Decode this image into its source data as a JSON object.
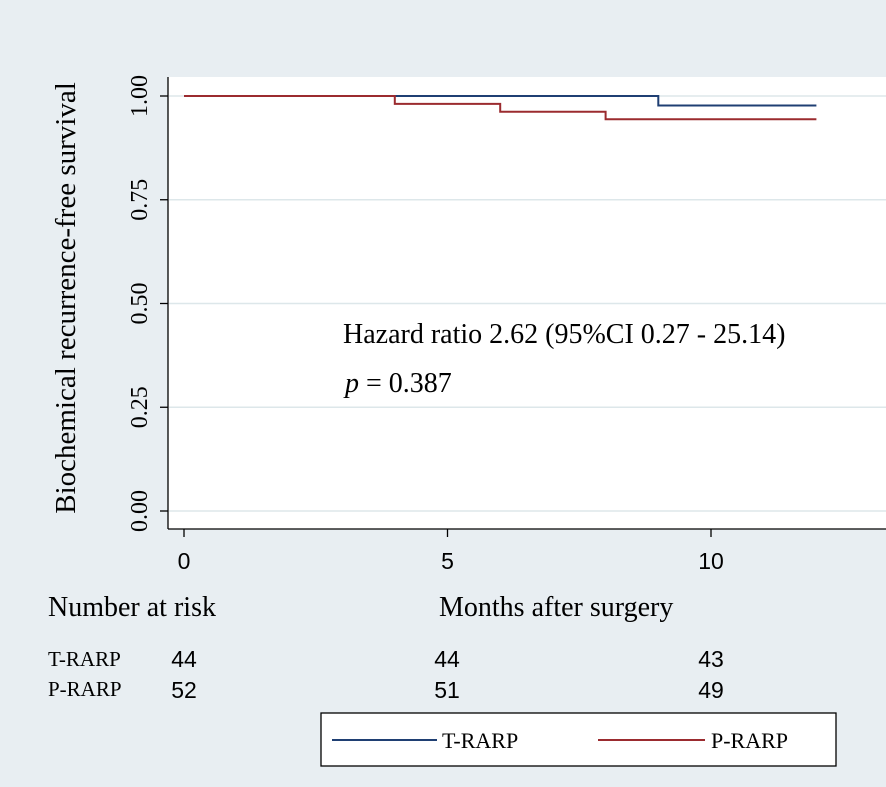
{
  "chart_data": {
    "type": "line",
    "title": "",
    "xlabel": "Months after surgery",
    "ylabel": "Biochemical recurrence-free survival",
    "xlim": [
      -0.4,
      13.5
    ],
    "ylim": [
      -0.04,
      1.04
    ],
    "x_ticks": [
      0,
      5,
      10
    ],
    "x_tick_labels": [
      "0",
      "5",
      "10"
    ],
    "y_ticks": [
      0,
      0.25,
      0.5,
      0.75,
      1
    ],
    "y_tick_labels": [
      "0.00",
      "0.25",
      "0.50",
      "0.75",
      "1.00"
    ],
    "grid": true,
    "series": [
      {
        "name": "T-RARP",
        "color": "#1f3f73",
        "steps": [
          [
            0,
            1.0
          ],
          [
            9,
            0.977
          ],
          [
            12,
            0.977
          ]
        ]
      },
      {
        "name": "P-RARP",
        "color": "#9b2b2f",
        "steps": [
          [
            0,
            1.0
          ],
          [
            4,
            0.981
          ],
          [
            6,
            0.962
          ],
          [
            8,
            0.944
          ],
          [
            12,
            0.944
          ]
        ]
      }
    ],
    "annotation": {
      "hr_text": "Hazard ratio 2.62 (95%CI 0.27 - 25.14)",
      "p_symbol": "p",
      "p_value_text": " = 0.387"
    },
    "risk_table": {
      "header": "Number at risk",
      "times": [
        0,
        5,
        10
      ],
      "rows": [
        {
          "label": "T-RARP",
          "counts": [
            "44",
            "44",
            "43"
          ]
        },
        {
          "label": "P-RARP",
          "counts": [
            "52",
            "51",
            "49"
          ]
        }
      ]
    },
    "legend": {
      "position": "bottom",
      "items": [
        {
          "label": "T-RARP",
          "color": "#1f3f73"
        },
        {
          "label": "P-RARP",
          "color": "#9b2b2f"
        }
      ]
    }
  },
  "colors": {
    "background": "#e8eef2",
    "plot_background": "#ffffff",
    "gridline": "#dde7ea",
    "axis": "#000000"
  }
}
